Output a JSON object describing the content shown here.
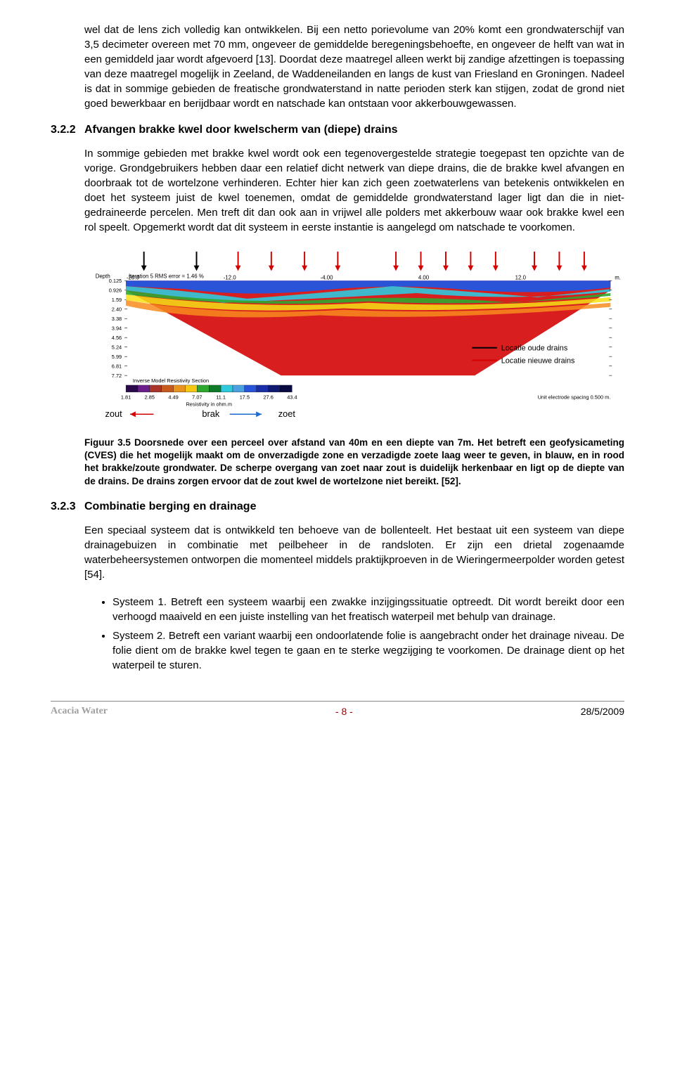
{
  "para_intro": "wel dat de lens zich volledig kan ontwikkelen. Bij een netto porievolume van 20% komt een grondwaterschijf van 3,5 decimeter overeen met 70 mm, ongeveer de gemiddelde beregeningsbehoefte, en ongeveer de helft van wat in een gemiddeld jaar wordt afgevoerd [13]. Doordat deze maatregel alleen werkt bij zandige afzettingen is toepassing van deze maatregel mogelijk in Zeeland, de Waddeneilanden en langs de kust van Friesland en Groningen. Nadeel is dat in sommige gebieden de freatische grondwaterstand in natte perioden sterk kan stijgen, zodat de grond niet goed bewerkbaar en berijdbaar wordt en natschade kan ontstaan voor akkerbouwgewassen.",
  "s322_num": "3.2.2",
  "s322_title": "Afvangen brakke kwel door kwelscherm van (diepe) drains",
  "s322_body": "In sommige gebieden met brakke kwel wordt ook een tegenovergestelde strategie toegepast ten opzichte van de vorige. Grondgebruikers hebben daar een relatief dicht netwerk van diepe drains, die de brakke kwel afvangen en doorbraak tot de wortelzone verhinderen. Echter hier kan zich geen zoetwaterlens van betekenis ontwikkelen en doet het systeem juist de kwel toenemen, omdat de gemiddelde grondwaterstand lager ligt dan die in niet-gedraineerde percelen. Men treft dit dan ook aan in vrijwel alle polders met akkerbouw waar ook brakke kwel een rol speelt. Opgemerkt wordt dat dit systeem in eerste instantie is aangelegd om natschade te voorkomen.",
  "figure": {
    "depth_label": "Depth",
    "iter_label": "Iteration 5 RMS error = 1.46 %",
    "x_ticks": [
      "-20.0",
      "-12.0",
      "-4.00",
      "4.00",
      "12.0"
    ],
    "x_unit": "m.",
    "y_ticks": [
      "0.125",
      "0.926",
      "1.59",
      "2.40",
      "3.38",
      "3.94",
      "4.56",
      "5.24",
      "5.99",
      "6.81",
      "7.72"
    ],
    "section_label": "Inverse Model Resistivity Section",
    "scale_ticks": [
      "1.81",
      "2.85",
      "4.49",
      "7.07",
      "11.1",
      "17.5",
      "27.6",
      "43.4"
    ],
    "scale_unit": "Resistivity in ohm.m",
    "unit_spacing": "Unit electrode spacing 0.500 m.",
    "legend_old": "Locatie oude drains",
    "legend_new": "Locatie nieuwe drains",
    "label_zout": "zout",
    "label_brak": "brak",
    "label_zoet": "zoet",
    "arrow_black_x": [
      86,
      162
    ],
    "arrow_red_x": [
      222,
      270,
      318,
      366,
      450,
      486,
      522,
      558,
      594,
      650,
      686,
      722
    ],
    "colors": {
      "red_body": "#d81e1e",
      "orange": "#f88c1e",
      "yellow": "#f6e015",
      "green1": "#2fa82f",
      "green2": "#0f7a2a",
      "cyan": "#2fc9de",
      "blue1": "#2a54d8",
      "blue2": "#1a2ea8",
      "purple": "#6a1e8a",
      "line_black": "#000000",
      "line_red": "#d40000"
    },
    "scale_colors": [
      "#2a0a4a",
      "#6a1e8a",
      "#a8342a",
      "#c85a1e",
      "#e8941e",
      "#f6c815",
      "#2fa82f",
      "#0f7a2a",
      "#2fc9de",
      "#4aa0e0",
      "#2a54d8",
      "#1a2ea8",
      "#101a70",
      "#080a40"
    ]
  },
  "fig_caption": "Figuur 3.5 Doorsnede over een perceel over afstand van 40m en een diepte van 7m. Het betreft een geofysicameting (CVES) die het mogelijk maakt om de onverzadigde zone en verzadigde zoete laag weer te geven, in blauw,  en in rood het brakke/zoute grondwater. De scherpe overgang van zoet naar zout is duidelijk herkenbaar en ligt op de diepte van de drains. De drains zorgen ervoor dat de zout kwel de wortelzone niet bereikt. [52].",
  "s323_num": "3.2.3",
  "s323_title": "Combinatie berging en drainage",
  "s323_body": "Een speciaal systeem dat is ontwikkeld ten behoeve van de bollenteelt. Het bestaat uit een systeem van diepe drainagebuizen in combinatie met peilbeheer in de randsloten. Er zijn een drietal zogenaamde waterbeheersystemen ontworpen die momenteel middels praktijkproeven in de Wieringermeerpolder worden getest [54].",
  "sys1": "Systeem 1. Betreft een systeem waarbij een zwakke inzijgingssituatie optreedt. Dit wordt bereikt door een verhoogd maaiveld en een juiste instelling van het freatisch waterpeil met behulp van drainage.",
  "sys2": "Systeem 2. Betreft een variant waarbij een ondoorlatende folie is aangebracht onder het drainage niveau. De folie dient om de brakke kwel tegen te gaan en te sterke wegzijging te voorkomen. De drainage dient op het waterpeil te sturen.",
  "footer": {
    "left": "Acacia Water",
    "center": "- 8 -",
    "right": "28/5/2009"
  }
}
